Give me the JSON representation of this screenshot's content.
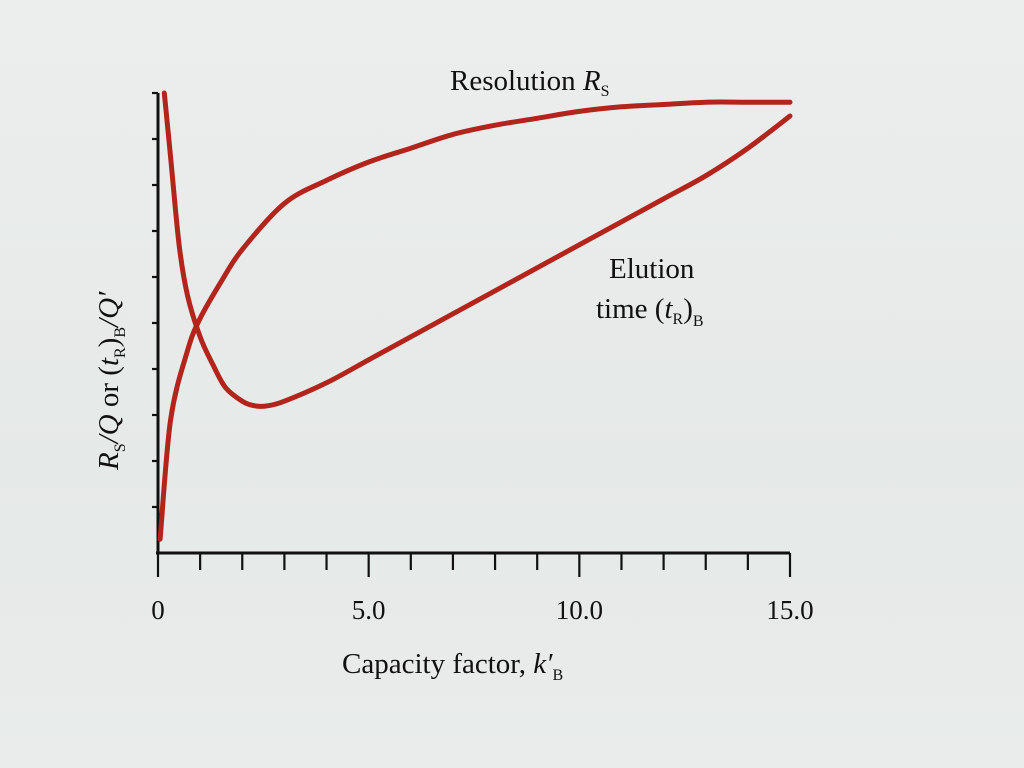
{
  "chart_data": {
    "type": "line",
    "xlabel": "Capacity factor, k′B",
    "ylabel": "RS/Q or (tR)B/Q′",
    "xlim": [
      0,
      15
    ],
    "ylim": [
      0,
      10
    ],
    "x_ticks": [
      0,
      5,
      10,
      15
    ],
    "x_tick_labels": [
      "0",
      "5.0",
      "10.0",
      "15.0"
    ],
    "x_minor_ticks": 15,
    "y_ticks": 10,
    "series": [
      {
        "name": "Resolution RS",
        "x": [
          0.05,
          0.3,
          0.7,
          1.0,
          1.5,
          2.0,
          3.0,
          4.0,
          5.0,
          6.0,
          7.0,
          8.0,
          9.0,
          10.0,
          11.0,
          12.0,
          13.0,
          14.0,
          15.0
        ],
        "y": [
          0.3,
          2.9,
          4.4,
          5.1,
          5.9,
          6.6,
          7.6,
          8.1,
          8.5,
          8.8,
          9.1,
          9.3,
          9.45,
          9.6,
          9.7,
          9.75,
          9.8,
          9.8,
          9.8
        ]
      },
      {
        "name": "Elution time (tR)B",
        "x": [
          0.15,
          0.3,
          0.5,
          0.7,
          1.0,
          1.3,
          1.6,
          2.0,
          2.3,
          2.6,
          3.0,
          4.0,
          5.0,
          6.0,
          7.0,
          8.0,
          9.0,
          10.0,
          11.0,
          12.0,
          13.0,
          14.0,
          15.0
        ],
        "y": [
          10.0,
          8.6,
          6.7,
          5.6,
          4.7,
          4.1,
          3.6,
          3.3,
          3.2,
          3.2,
          3.3,
          3.7,
          4.2,
          4.7,
          5.2,
          5.7,
          6.2,
          6.7,
          7.2,
          7.7,
          8.2,
          8.8,
          9.5
        ]
      }
    ],
    "curve_labels": {
      "resolution": {
        "text": "Resolution ",
        "symbol": "R",
        "subscript": "S"
      },
      "elution_line1": "Elution",
      "elution_line2": {
        "text": "time (",
        "symbol": "t",
        "subscript": "R",
        "close": ")",
        "outer_subscript": "B"
      }
    },
    "axis_label_parts": {
      "x": {
        "text": "Capacity factor, ",
        "symbol": "k′",
        "subscript": "B"
      },
      "y": {
        "r": "R",
        "r_sub": "S",
        "q": "/Q",
        "or": " or (",
        "t": "t",
        "t_sub": "R",
        "close": ")",
        "close_sub": "B",
        "q2": "/Q′"
      }
    },
    "colors": {
      "curve": "#b3251c",
      "axis": "#111111",
      "background": "#e7ebe9"
    },
    "grid": false,
    "legend": "none"
  }
}
